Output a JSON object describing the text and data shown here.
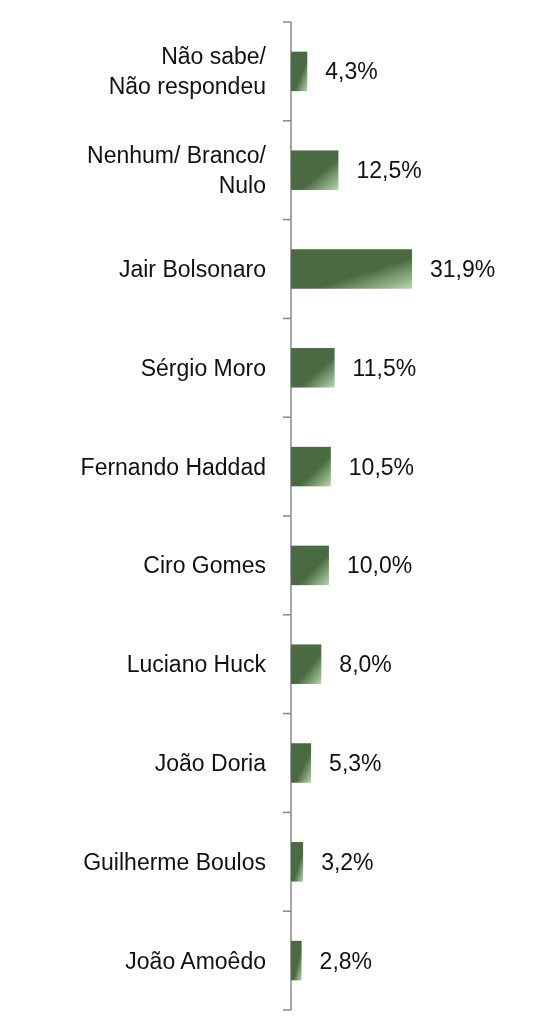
{
  "chart_data": {
    "type": "bar",
    "orientation": "horizontal",
    "categories": [
      "Não sabe/\nNão respondeu",
      "Nenhum/ Branco/\nNulo",
      "Jair Bolsonaro",
      "Sérgio Moro",
      "Fernando Haddad",
      "Ciro Gomes",
      "Luciano Huck",
      "João Doria",
      "Guilherme Boulos",
      "João Amoêdo"
    ],
    "values": [
      4.3,
      12.5,
      31.9,
      11.5,
      10.5,
      10.0,
      8.0,
      5.3,
      3.2,
      2.8
    ],
    "value_labels": [
      "4,3%",
      "12,5%",
      "31,9%",
      "11,5%",
      "10,5%",
      "10,0%",
      "8,0%",
      "5,3%",
      "3,2%",
      "2,8%"
    ],
    "color": "#4a6b42"
  }
}
